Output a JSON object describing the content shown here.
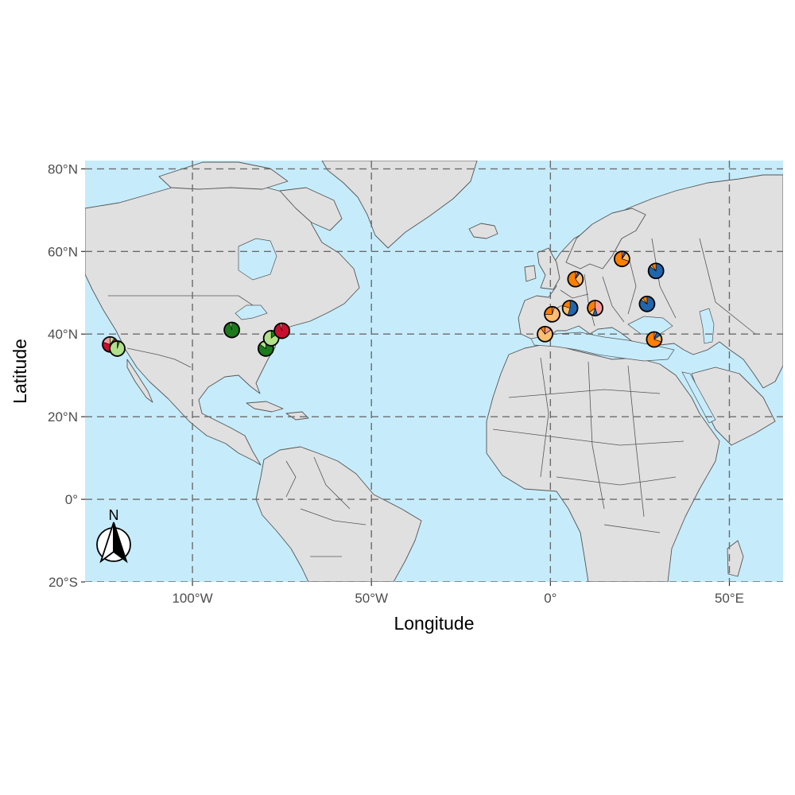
{
  "map": {
    "xlabel": "Longitude",
    "ylabel": "Latitude",
    "xlim": [
      -130,
      65
    ],
    "ylim": [
      -20,
      82
    ],
    "x_ticks": [
      {
        "value": -100,
        "label": "100°W"
      },
      {
        "value": -50,
        "label": "50°W"
      },
      {
        "value": 0,
        "label": "0°"
      },
      {
        "value": 50,
        "label": "50°E"
      }
    ],
    "y_ticks": [
      {
        "value": 80,
        "label": "80°N"
      },
      {
        "value": 60,
        "label": "60°N"
      },
      {
        "value": 40,
        "label": "40°N"
      },
      {
        "value": 20,
        "label": "20°N"
      },
      {
        "value": 0,
        "label": "0°"
      },
      {
        "value": -20,
        "label": "20°S"
      }
    ],
    "colors": {
      "ocean": "#c6ecfc",
      "land": "#e0e0e0",
      "country_border": "#555555",
      "grid": "#6b6b6b"
    },
    "north_arrow": {
      "label": "N"
    }
  },
  "chart_data": {
    "type": "map-pie",
    "group_colors": [
      "#1b7a1b",
      "#b2df8a",
      "#c8102e",
      "#fb9a99",
      "#2166ac",
      "#fdbf6f",
      "#ff7f00"
    ],
    "sites": [
      {
        "lon": -123.0,
        "lat": 37.5,
        "fractions": [
          0.0,
          0.1,
          0.7,
          0.2,
          0.0,
          0.0,
          0.0
        ]
      },
      {
        "lon": -121.0,
        "lat": 36.5,
        "fractions": [
          0.05,
          0.95,
          0.0,
          0.0,
          0.0,
          0.0,
          0.0
        ]
      },
      {
        "lon": -89.0,
        "lat": 41.0,
        "fractions": [
          0.95,
          0.05,
          0.0,
          0.0,
          0.0,
          0.0,
          0.0
        ]
      },
      {
        "lon": -79.5,
        "lat": 36.5,
        "fractions": [
          0.85,
          0.15,
          0.0,
          0.0,
          0.0,
          0.0,
          0.0
        ]
      },
      {
        "lon": -78.0,
        "lat": 39.0,
        "fractions": [
          0.15,
          0.85,
          0.0,
          0.0,
          0.0,
          0.0,
          0.0
        ]
      },
      {
        "lon": -75.0,
        "lat": 40.8,
        "fractions": [
          0.0,
          0.0,
          0.95,
          0.05,
          0.0,
          0.0,
          0.0
        ]
      },
      {
        "lon": -1.5,
        "lat": 40.0,
        "fractions": [
          0.0,
          0.0,
          0.0,
          0.15,
          0.0,
          0.75,
          0.1
        ]
      },
      {
        "lon": 0.5,
        "lat": 44.8,
        "fractions": [
          0.0,
          0.0,
          0.0,
          0.05,
          0.0,
          0.7,
          0.25
        ]
      },
      {
        "lon": 5.5,
        "lat": 46.3,
        "fractions": [
          0.0,
          0.0,
          0.0,
          0.0,
          0.55,
          0.25,
          0.2
        ]
      },
      {
        "lon": 7.0,
        "lat": 53.3,
        "fractions": [
          0.0,
          0.0,
          0.0,
          0.05,
          0.05,
          0.3,
          0.6
        ]
      },
      {
        "lon": 12.5,
        "lat": 46.3,
        "fractions": [
          0.0,
          0.0,
          0.0,
          0.45,
          0.1,
          0.1,
          0.35
        ]
      },
      {
        "lon": 20.0,
        "lat": 58.2,
        "fractions": [
          0.0,
          0.0,
          0.0,
          0.05,
          0.05,
          0.2,
          0.7
        ]
      },
      {
        "lon": 27.0,
        "lat": 47.3,
        "fractions": [
          0.0,
          0.0,
          0.0,
          0.0,
          0.85,
          0.05,
          0.1
        ]
      },
      {
        "lon": 29.5,
        "lat": 55.3,
        "fractions": [
          0.0,
          0.0,
          0.0,
          0.0,
          0.85,
          0.05,
          0.1
        ]
      },
      {
        "lon": 29.0,
        "lat": 38.7,
        "fractions": [
          0.0,
          0.0,
          0.0,
          0.05,
          0.1,
          0.15,
          0.7
        ]
      }
    ]
  }
}
